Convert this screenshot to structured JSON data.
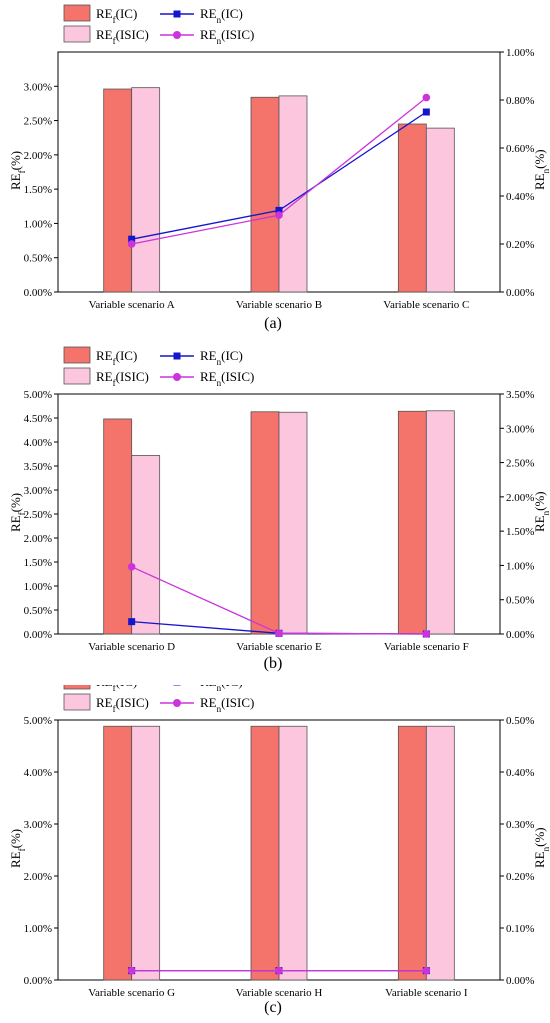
{
  "colors": {
    "ic_bar": "#f4736a",
    "isic_bar": "#fbc6de",
    "ic_line": "#1515cc",
    "isic_line": "#cc33dd"
  },
  "legend": {
    "ref_ic": "IC",
    "ref_isic": "ISIC",
    "ren_ic": "IC",
    "ren_isic": "ISIC",
    "ref_prefix": "RE",
    "ref_sub": "f",
    "ren_prefix": "RE",
    "ren_sub": "n"
  },
  "axes": {
    "left_label": "(%)",
    "right_label": "(%)"
  },
  "chart_data": [
    {
      "type": "bar",
      "panel_label": "(a)",
      "categories": [
        "Variable scenario A",
        "Variable scenario B",
        "Variable scenario C"
      ],
      "series": [
        {
          "name": "REf(IC)",
          "axis": "left",
          "kind": "bar",
          "values": [
            2.96,
            2.84,
            2.45
          ]
        },
        {
          "name": "REf(ISIC)",
          "axis": "left",
          "kind": "bar",
          "values": [
            2.98,
            2.86,
            2.39
          ]
        },
        {
          "name": "REn(IC)",
          "axis": "right",
          "kind": "line",
          "marker": "square",
          "values": [
            0.22,
            0.34,
            0.75
          ]
        },
        {
          "name": "REn(ISIC)",
          "axis": "right",
          "kind": "line",
          "marker": "circle",
          "values": [
            0.2,
            0.32,
            0.81
          ]
        }
      ],
      "ylim_left": [
        0,
        3.5
      ],
      "yticks_left": [
        0,
        0.5,
        1.0,
        1.5,
        2.0,
        2.5,
        3.0
      ],
      "ylim_right": [
        0,
        1.0
      ],
      "yticks_right": [
        0,
        0.2,
        0.4,
        0.6,
        0.8,
        1.0
      ],
      "left_tick_labels": [
        "0.00%",
        "0.50%",
        "1.00%",
        "1.50%",
        "2.00%",
        "2.50%",
        "3.00%"
      ],
      "right_tick_labels": [
        "0.00%",
        "0.20%",
        "0.40%",
        "0.60%",
        "0.80%",
        "1.00%"
      ],
      "legend_position": "top-left"
    },
    {
      "type": "bar",
      "panel_label": "(b)",
      "categories": [
        "Variable scenario D",
        "Variable scenario E",
        "Variable scenario F"
      ],
      "series": [
        {
          "name": "REf(IC)",
          "axis": "left",
          "kind": "bar",
          "values": [
            4.48,
            4.63,
            4.64
          ]
        },
        {
          "name": "REf(ISIC)",
          "axis": "left",
          "kind": "bar",
          "values": [
            3.72,
            4.62,
            4.65
          ]
        },
        {
          "name": "REn(IC)",
          "axis": "right",
          "kind": "line",
          "marker": "square",
          "values": [
            0.18,
            0.01,
            0.0
          ]
        },
        {
          "name": "REn(ISIC)",
          "axis": "right",
          "kind": "line",
          "marker": "circle",
          "values": [
            0.98,
            0.01,
            0.0
          ]
        }
      ],
      "ylim_left": [
        0,
        5.0
      ],
      "yticks_left": [
        0,
        0.5,
        1.0,
        1.5,
        2.0,
        2.5,
        3.0,
        3.5,
        4.0,
        4.5,
        5.0
      ],
      "ylim_right": [
        0,
        3.5
      ],
      "yticks_right": [
        0,
        0.5,
        1.0,
        1.5,
        2.0,
        2.5,
        3.0,
        3.5
      ],
      "left_tick_labels": [
        "0.00%",
        "0.50%",
        "1.00%",
        "1.50%",
        "2.00%",
        "2.50%",
        "3.00%",
        "3.50%",
        "4.00%",
        "4.50%",
        "5.00%"
      ],
      "right_tick_labels": [
        "0.00%",
        "0.50%",
        "1.00%",
        "1.50%",
        "2.00%",
        "2.50%",
        "3.00%",
        "3.50%"
      ],
      "legend_position": "top-left"
    },
    {
      "type": "bar",
      "panel_label": "(c)",
      "categories": [
        "Variable scenario G",
        "Variable scenario H",
        "Variable scenario I"
      ],
      "series": [
        {
          "name": "REf(IC)",
          "axis": "left",
          "kind": "bar",
          "values": [
            4.88,
            4.88,
            4.88
          ]
        },
        {
          "name": "REf(ISIC)",
          "axis": "left",
          "kind": "bar",
          "values": [
            4.88,
            4.88,
            4.88
          ]
        },
        {
          "name": "REn(IC)",
          "axis": "right",
          "kind": "line",
          "marker": "square",
          "values": [
            0.018,
            0.018,
            0.018
          ]
        },
        {
          "name": "REn(ISIC)",
          "axis": "right",
          "kind": "line",
          "marker": "circle",
          "values": [
            0.018,
            0.018,
            0.018
          ]
        }
      ],
      "ylim_left": [
        0,
        5.0
      ],
      "yticks_left": [
        0,
        1.0,
        2.0,
        3.0,
        4.0,
        5.0
      ],
      "ylim_right": [
        0,
        0.5
      ],
      "yticks_right": [
        0,
        0.1,
        0.2,
        0.3,
        0.4,
        0.5
      ],
      "left_tick_labels": [
        "0.00%",
        "1.00%",
        "2.00%",
        "3.00%",
        "4.00%",
        "5.00%"
      ],
      "right_tick_labels": [
        "0.00%",
        "0.10%",
        "0.20%",
        "0.30%",
        "0.40%",
        "0.50%"
      ],
      "legend_position": "top-left"
    }
  ]
}
